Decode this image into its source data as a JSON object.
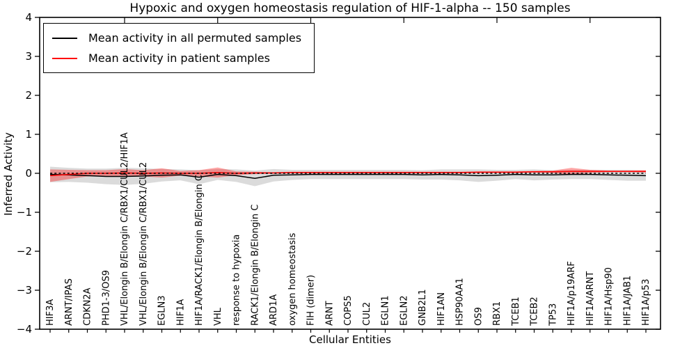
{
  "chart_data": {
    "type": "line",
    "title": "Hypoxic and oxygen homeostasis regulation of HIF-1-alpha -- 150 samples",
    "xlabel": "Cellular Entities",
    "ylabel": "Inferred Activity",
    "ylim": [
      -4,
      4
    ],
    "yticks": [
      "4",
      "3",
      "2",
      "1",
      "0",
      "-1",
      "-2",
      "-3",
      "-4"
    ],
    "grid": false,
    "legend_position": "upper left",
    "reference_line": {
      "y": 0,
      "color": "#000000",
      "style": "dashed"
    },
    "categories": [
      "HIF3A",
      "ARNT/IPAS",
      "CDKN2A",
      "PHD1-3/OS9",
      "VHL/Elongin B/Elongin C/RBX1/CUL2/HIF1A",
      "VHL/Elongin B/Elongin C/RBX1/CUL2",
      "EGLN3",
      "HIF1A",
      "HIF1A/RACK1/Elongin B/Elongin C",
      "VHL",
      "response to hypoxia",
      "RACK1/Elongin B/Elongin C",
      "ARD1A",
      "oxygen homeostasis",
      "FIH (dimer)",
      "ARNT",
      "COPS5",
      "CUL2",
      "EGLN1",
      "EGLN2",
      "GNB2L1",
      "HIF1AN",
      "HSP90AA1",
      "OS9",
      "RBX1",
      "TCEB1",
      "TCEB2",
      "TP53",
      "HIF1A/p19ARF",
      "HIF1A/ARNT",
      "HIF1A/Hsp90",
      "HIF1A/JAB1",
      "HIF1A/p53"
    ],
    "series": [
      {
        "name": "Mean activity in all permuted samples",
        "color": "#000000",
        "band_color": "rgba(0,0,0,0.14)",
        "values": [
          -0.03,
          -0.04,
          -0.06,
          -0.08,
          -0.08,
          -0.07,
          -0.05,
          -0.04,
          -0.1,
          -0.03,
          -0.06,
          -0.13,
          -0.05,
          -0.04,
          -0.03,
          -0.03,
          -0.03,
          -0.03,
          -0.03,
          -0.03,
          -0.04,
          -0.03,
          -0.04,
          -0.06,
          -0.05,
          -0.03,
          -0.04,
          -0.04,
          -0.03,
          -0.03,
          -0.04,
          -0.05,
          -0.06
        ],
        "std": [
          0.2,
          0.18,
          0.18,
          0.2,
          0.22,
          0.2,
          0.16,
          0.14,
          0.18,
          0.14,
          0.16,
          0.2,
          0.16,
          0.13,
          0.12,
          0.12,
          0.12,
          0.12,
          0.12,
          0.12,
          0.12,
          0.13,
          0.14,
          0.16,
          0.14,
          0.12,
          0.14,
          0.12,
          0.12,
          0.12,
          0.13,
          0.14,
          0.13
        ]
      },
      {
        "name": "Mean activity in patient samples",
        "color": "#ff0000",
        "band_color": "rgba(255,0,0,0.35)",
        "values": [
          -0.06,
          -0.03,
          0.0,
          0.0,
          0.01,
          0.0,
          0.01,
          0.0,
          0.0,
          0.02,
          0.0,
          0.01,
          0.01,
          0.02,
          0.02,
          0.02,
          0.02,
          0.02,
          0.02,
          0.02,
          0.02,
          0.02,
          0.02,
          0.03,
          0.03,
          0.03,
          0.04,
          0.04,
          0.05,
          0.05,
          0.05,
          0.05,
          0.05
        ],
        "std": [
          0.16,
          0.12,
          0.08,
          0.08,
          0.1,
          0.08,
          0.12,
          0.06,
          0.08,
          0.13,
          0.05,
          0.03,
          0.02,
          0.02,
          0.02,
          0.02,
          0.02,
          0.02,
          0.02,
          0.02,
          0.02,
          0.02,
          0.02,
          0.02,
          0.02,
          0.02,
          0.02,
          0.03,
          0.09,
          0.04,
          0.02,
          0.02,
          0.03
        ]
      }
    ]
  }
}
